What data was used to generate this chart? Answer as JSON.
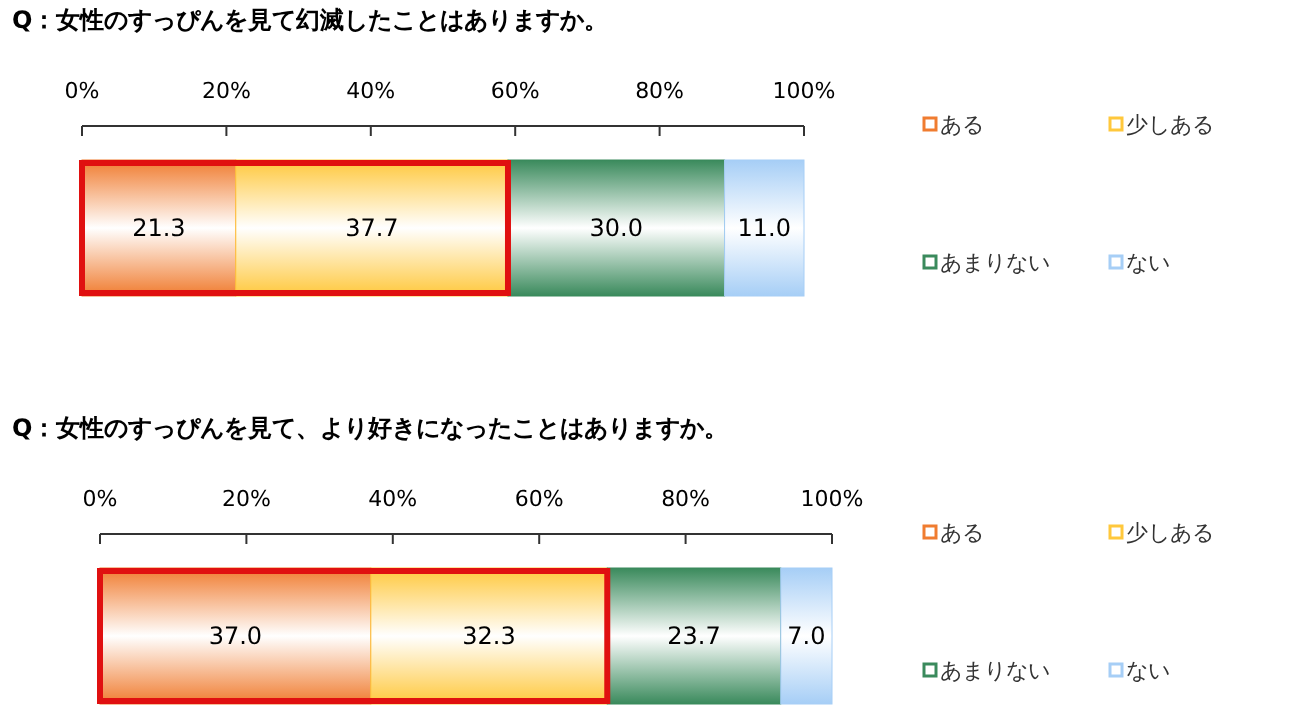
{
  "chart_data": [
    {
      "type": "bar",
      "title": "Q：女性のすっぴんを見て幻滅したことはありますか。",
      "orientation": "horizontal",
      "stacked": true,
      "categories": [
        null
      ],
      "xlim": [
        0,
        100
      ],
      "xticks": [
        {
          "value": 0,
          "label": "0%"
        },
        {
          "value": 20,
          "label": "20%"
        },
        {
          "value": 40,
          "label": "40%"
        },
        {
          "value": 60,
          "label": "60%"
        },
        {
          "value": 80,
          "label": "80%"
        },
        {
          "value": 100,
          "label": "100%"
        }
      ],
      "legend": "right",
      "series": [
        {
          "name": "ある",
          "color": "#f07c30",
          "values": [
            21.3
          ],
          "value_labels": [
            "21.3"
          ]
        },
        {
          "name": "少しある",
          "color": "#ffc83c",
          "values": [
            37.7
          ],
          "value_labels": [
            "37.7"
          ]
        },
        {
          "name": "あまりない",
          "color": "#3a8a5c",
          "values": [
            30.0
          ],
          "value_labels": [
            "30.0"
          ]
        },
        {
          "name": "ない",
          "color": "#a6cef6",
          "values": [
            11.0
          ],
          "value_labels": [
            "11.0"
          ]
        }
      ]
    },
    {
      "type": "bar",
      "title": "Q：女性のすっぴんを見て、より好きになったことはありますか。",
      "orientation": "horizontal",
      "stacked": true,
      "categories": [
        null
      ],
      "xlim": [
        0,
        100
      ],
      "xticks": [
        {
          "value": 0,
          "label": "0%"
        },
        {
          "value": 20,
          "label": "20%"
        },
        {
          "value": 40,
          "label": "40%"
        },
        {
          "value": 60,
          "label": "60%"
        },
        {
          "value": 80,
          "label": "80%"
        },
        {
          "value": 100,
          "label": "100%"
        }
      ],
      "legend": "right",
      "series": [
        {
          "name": "ある",
          "color": "#f07c30",
          "values": [
            37.0
          ],
          "value_labels": [
            "37.0"
          ]
        },
        {
          "name": "少しある",
          "color": "#ffc83c",
          "values": [
            32.3
          ],
          "value_labels": [
            "32.3"
          ]
        },
        {
          "name": "あまりない",
          "color": "#3a8a5c",
          "values": [
            23.7
          ],
          "value_labels": [
            "23.7"
          ]
        },
        {
          "name": "ない",
          "color": "#a6cef6",
          "values": [
            7.0
          ],
          "value_labels": [
            "7.0"
          ]
        }
      ]
    }
  ]
}
